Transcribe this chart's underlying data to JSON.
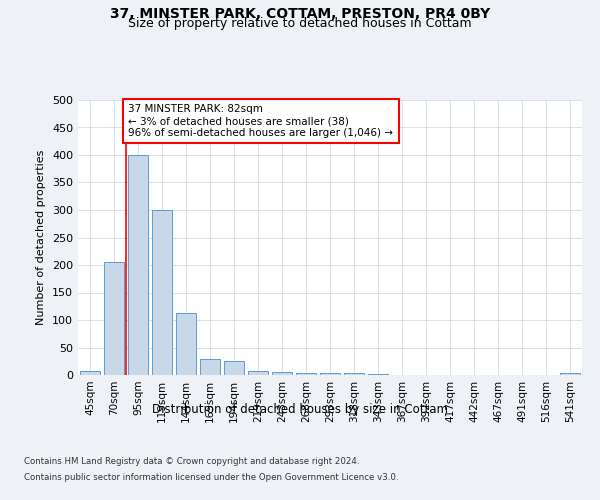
{
  "title_line1": "37, MINSTER PARK, COTTAM, PRESTON, PR4 0BY",
  "title_line2": "Size of property relative to detached houses in Cottam",
  "xlabel": "Distribution of detached houses by size in Cottam",
  "ylabel": "Number of detached properties",
  "categories": [
    "45sqm",
    "70sqm",
    "95sqm",
    "119sqm",
    "144sqm",
    "169sqm",
    "194sqm",
    "219sqm",
    "243sqm",
    "268sqm",
    "293sqm",
    "318sqm",
    "343sqm",
    "367sqm",
    "392sqm",
    "417sqm",
    "442sqm",
    "467sqm",
    "491sqm",
    "516sqm",
    "541sqm"
  ],
  "values": [
    8,
    205,
    400,
    300,
    112,
    30,
    25,
    8,
    6,
    4,
    3,
    3,
    2,
    0,
    0,
    0,
    0,
    0,
    0,
    0,
    4
  ],
  "bar_color": "#c8d8e8",
  "bar_edge_color": "#5b9bd5",
  "property_line_x": 1.5,
  "annotation_text": "37 MINSTER PARK: 82sqm\n← 3% of detached houses are smaller (38)\n96% of semi-detached houses are larger (1,046) →",
  "annotation_box_color": "white",
  "annotation_box_edge_color": "red",
  "property_line_color": "red",
  "ylim": [
    0,
    500
  ],
  "yticks": [
    0,
    50,
    100,
    150,
    200,
    250,
    300,
    350,
    400,
    450,
    500
  ],
  "footer_line1": "Contains HM Land Registry data © Crown copyright and database right 2024.",
  "footer_line2": "Contains public sector information licensed under the Open Government Licence v3.0.",
  "bg_color": "#eef2f6",
  "plot_bg_color": "white",
  "grid_color": "#c8d4e0"
}
